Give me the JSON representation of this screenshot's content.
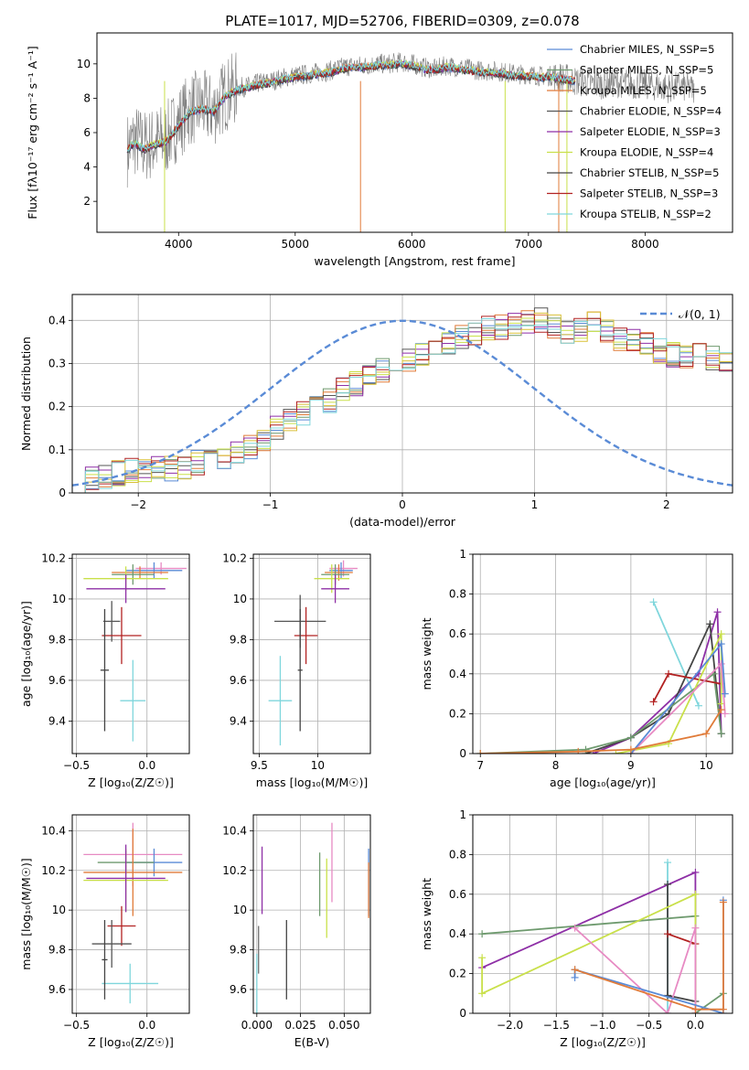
{
  "figure_title": "PLATE=1017, MJD=52706, FIBERID=0309, z=0.078",
  "series_colors": [
    "#5a8bd6",
    "#6e9a6e",
    "#e07b39",
    "#555555",
    "#8e2fa6",
    "#c9e04a",
    "#d9c037",
    "#b22222",
    "#7fd6dc"
  ],
  "chart_data": [
    {
      "id": "spectrum",
      "type": "line",
      "title": "PLATE=1017, MJD=52706, FIBERID=0309, z=0.078",
      "xlabel": "wavelength [Angstrom, rest frame]",
      "ylabel": "Flux [fλ10⁻¹⁷ erg cm⁻² s⁻¹ A⁻¹]",
      "xlim": [
        3300,
        8750
      ],
      "ylim": [
        0.2,
        11.8
      ],
      "xticks": [
        4000,
        5000,
        6000,
        7000,
        8000
      ],
      "yticks": [
        2,
        4,
        6,
        8,
        10
      ],
      "grid": false,
      "legend_position": "right",
      "legend": [
        "Chabrier MILES, N_SSP=5",
        "Salpeter MILES, N_SSP=5",
        "Kroupa MILES, N_SSP=5",
        "Chabrier ELODIE, N_SSP=4",
        "Salpeter ELODIE, N_SSP=3",
        "Kroupa ELODIE, N_SSP=4",
        "Chabrier STELIB, N_SSP=5",
        "Salpeter STELIB, N_SSP=3",
        "Kroupa STELIB, N_SSP=2"
      ],
      "legend_colors": [
        "#5a8bd6",
        "#6e9a6e",
        "#e07b39",
        "#555555",
        "#8e2fa6",
        "#c9e04a",
        "#444444",
        "#b22222",
        "#7fd6dc"
      ],
      "data_wavelength": [
        3560,
        3620,
        3700,
        3800,
        3900,
        4000,
        4100,
        4200,
        4300,
        4400,
        4500,
        4600,
        4700,
        4800,
        4900,
        5000,
        5100,
        5200,
        5300,
        5400,
        5500,
        5600,
        5700,
        5800,
        5900,
        6000,
        6100,
        6200,
        6300,
        6400,
        6500,
        6600,
        6700,
        6800,
        6900,
        7000,
        7100,
        7200,
        7300,
        7400,
        7500,
        7600,
        7700,
        7800,
        7900,
        8000,
        8100,
        8200,
        8300,
        8420
      ],
      "data_flux": [
        5.0,
        5.6,
        5.2,
        5.4,
        5.7,
        6.6,
        7.4,
        7.5,
        7.3,
        8.2,
        8.6,
        8.7,
        8.9,
        9.0,
        9.2,
        9.3,
        9.4,
        9.5,
        9.6,
        9.8,
        9.9,
        9.9,
        10.0,
        10.0,
        10.1,
        10.0,
        9.8,
        9.7,
        9.9,
        9.8,
        9.7,
        9.6,
        9.6,
        9.5,
        9.4,
        9.4,
        9.3,
        9.3,
        9.2,
        9.0,
        8.9,
        8.8,
        8.9,
        8.9,
        8.8,
        8.8,
        8.7,
        8.6,
        8.7,
        8.5
      ],
      "model_wavelength": [
        3560,
        3620,
        3700,
        3800,
        3900,
        4000,
        4100,
        4200,
        4300,
        4400,
        4500,
        4600,
        4700,
        4800,
        4900,
        5000,
        5100,
        5200,
        5300,
        5400,
        5500,
        5600,
        5700,
        5800,
        5900,
        6000,
        6100,
        6200,
        6300,
        6400,
        6500,
        6600,
        6700,
        6800,
        6900,
        7000,
        7100,
        7200,
        7300,
        7400
      ],
      "model_flux": [
        5.0,
        5.4,
        5.0,
        5.3,
        5.5,
        6.4,
        7.2,
        7.4,
        7.2,
        8.1,
        8.5,
        8.6,
        8.8,
        8.9,
        9.1,
        9.2,
        9.3,
        9.4,
        9.5,
        9.7,
        9.8,
        9.8,
        9.9,
        9.9,
        10.0,
        9.9,
        9.7,
        9.6,
        9.8,
        9.7,
        9.6,
        9.5,
        9.5,
        9.4,
        9.3,
        9.3,
        9.2,
        9.2,
        9.1,
        9.0
      ]
    },
    {
      "id": "residuals",
      "type": "histogram",
      "xlabel": "(data-model)/error",
      "ylabel": "Normed distribution",
      "xlim": [
        -2.5,
        2.5
      ],
      "ylim": [
        0,
        0.46
      ],
      "xticks": [
        -2,
        -1,
        0,
        1,
        2
      ],
      "xtick_labels": [
        "−2",
        "−1",
        "0",
        "1",
        "2"
      ],
      "yticks": [
        0.0,
        0.1,
        0.2,
        0.3,
        0.4
      ],
      "grid": true,
      "legend": [
        "𝒩(0, 1)"
      ],
      "legend_position": "top-right",
      "bin_width": 0.1,
      "bin_start": -2.5,
      "hist_base": [
        0.03,
        0.035,
        0.04,
        0.045,
        0.05,
        0.055,
        0.06,
        0.055,
        0.06,
        0.07,
        0.075,
        0.08,
        0.09,
        0.105,
        0.125,
        0.15,
        0.165,
        0.185,
        0.2,
        0.215,
        0.24,
        0.255,
        0.27,
        0.285,
        0.3,
        0.31,
        0.325,
        0.335,
        0.345,
        0.36,
        0.37,
        0.38,
        0.385,
        0.39,
        0.395,
        0.4,
        0.385,
        0.37,
        0.38,
        0.4,
        0.375,
        0.36,
        0.35,
        0.345,
        0.33,
        0.32,
        0.32,
        0.32,
        0.31,
        0.3,
        0.29,
        0.27,
        0.25,
        0.245,
        0.23,
        0.215,
        0.19,
        0.17,
        0.15,
        0.135,
        0.12,
        0.11,
        0.1,
        0.09,
        0.075,
        0.065,
        0.06,
        0.055,
        0.05,
        0.045,
        0.04,
        0.035,
        0.035,
        0.03,
        0.03,
        0.03
      ]
    },
    {
      "id": "age-vs-Z",
      "type": "scatter",
      "xlabel": "Z [log₁₀(Z/Z☉)]",
      "ylabel": "age  [log₁₀(age/yr)]",
      "xlim": [
        -0.53,
        0.3
      ],
      "ylim": [
        9.24,
        10.22
      ],
      "xticks": [
        -0.5,
        0.0
      ],
      "xtick_labels": [
        "−0.5",
        "0.0"
      ],
      "yticks": [
        9.4,
        9.6,
        9.8,
        10.0,
        10.2
      ],
      "grid": true,
      "points": [
        {
          "x": 0.1,
          "y": 10.15,
          "xerr": 0.18,
          "yerr": 0.03,
          "color": "#e78ac3"
        },
        {
          "x": 0.05,
          "y": 10.14,
          "xerr": 0.2,
          "yerr": 0.04,
          "color": "#5a8bd6"
        },
        {
          "x": -0.05,
          "y": 10.13,
          "xerr": 0.2,
          "yerr": 0.03,
          "color": "#e07b39"
        },
        {
          "x": -0.1,
          "y": 10.12,
          "xerr": 0.15,
          "yerr": 0.05,
          "color": "#6e9a6e"
        },
        {
          "x": -0.15,
          "y": 10.1,
          "xerr": 0.3,
          "yerr": 0.06,
          "color": "#c9e04a"
        },
        {
          "x": -0.15,
          "y": 10.05,
          "xerr": 0.28,
          "yerr": 0.07,
          "color": "#8e2fa6"
        },
        {
          "x": -0.25,
          "y": 9.89,
          "xerr": 0.06,
          "yerr": 0.1,
          "color": "#555555"
        },
        {
          "x": -0.18,
          "y": 9.82,
          "xerr": 0.14,
          "yerr": 0.14,
          "color": "#b22222"
        },
        {
          "x": -0.1,
          "y": 9.5,
          "xerr": 0.09,
          "yerr": 0.2,
          "color": "#7fd6dc"
        },
        {
          "x": -0.3,
          "y": 9.65,
          "xerr": 0.03,
          "yerr": 0.3,
          "color": "#444444"
        }
      ]
    },
    {
      "id": "age-vs-mass",
      "type": "scatter",
      "xlabel": "mass [log₁₀(M/M☉)]",
      "ylabel": "",
      "xlim": [
        9.45,
        10.45
      ],
      "ylim": [
        9.24,
        10.22
      ],
      "xticks": [
        9.5,
        10.0
      ],
      "yticks": [
        9.4,
        9.6,
        9.8,
        10.0,
        10.2
      ],
      "grid": true,
      "points": [
        {
          "x": 10.22,
          "y": 10.15,
          "xerr": 0.12,
          "yerr": 0.04,
          "color": "#e78ac3"
        },
        {
          "x": 10.2,
          "y": 10.14,
          "xerr": 0.1,
          "yerr": 0.04,
          "color": "#5a8bd6"
        },
        {
          "x": 10.18,
          "y": 10.13,
          "xerr": 0.12,
          "yerr": 0.04,
          "color": "#e07b39"
        },
        {
          "x": 10.15,
          "y": 10.12,
          "xerr": 0.12,
          "yerr": 0.05,
          "color": "#6e9a6e"
        },
        {
          "x": 10.12,
          "y": 10.1,
          "xerr": 0.15,
          "yerr": 0.07,
          "color": "#c9e04a"
        },
        {
          "x": 10.15,
          "y": 10.05,
          "xerr": 0.12,
          "yerr": 0.07,
          "color": "#8e2fa6"
        },
        {
          "x": 9.85,
          "y": 9.89,
          "xerr": 0.22,
          "yerr": 0.13,
          "color": "#555555"
        },
        {
          "x": 9.9,
          "y": 9.82,
          "xerr": 0.1,
          "yerr": 0.14,
          "color": "#b22222"
        },
        {
          "x": 9.68,
          "y": 9.5,
          "xerr": 0.1,
          "yerr": 0.22,
          "color": "#7fd6dc"
        },
        {
          "x": 9.85,
          "y": 9.65,
          "xerr": 0.02,
          "yerr": 0.3,
          "color": "#444444"
        }
      ]
    },
    {
      "id": "massweight-vs-age",
      "type": "line",
      "xlabel": "age  [log₁₀(age/yr)]",
      "ylabel": "mass weight",
      "xlim": [
        6.9,
        10.35
      ],
      "ylim": [
        0.0,
        1.0
      ],
      "xticks": [
        7,
        8,
        9,
        10
      ],
      "yticks": [
        0.0,
        0.2,
        0.4,
        0.6,
        0.8,
        1.0
      ],
      "grid": true,
      "series": [
        {
          "color": "#7fd6dc",
          "x": [
            9.3,
            9.9
          ],
          "y": [
            0.76,
            0.24
          ]
        },
        {
          "color": "#8e2fa6",
          "x": [
            8.5,
            9.0,
            9.9,
            10.15,
            10.2
          ],
          "y": [
            0.0,
            0.08,
            0.4,
            0.71,
            0.1
          ]
        },
        {
          "color": "#444444",
          "x": [
            8.4,
            9.0,
            9.5,
            10.05,
            10.2
          ],
          "y": [
            0.0,
            0.08,
            0.2,
            0.65,
            0.1
          ]
        },
        {
          "color": "#6e9a6e",
          "x": [
            7.0,
            8.4,
            9.0,
            10.1,
            10.2
          ],
          "y": [
            0.0,
            0.02,
            0.08,
            0.4,
            0.1
          ]
        },
        {
          "color": "#b22222",
          "x": [
            9.3,
            9.5,
            10.2
          ],
          "y": [
            0.26,
            0.4,
            0.35
          ]
        },
        {
          "color": "#c9e04a",
          "x": [
            8.8,
            9.5,
            10.2,
            10.2
          ],
          "y": [
            0.0,
            0.05,
            0.6,
            0.25
          ]
        },
        {
          "color": "#e78ac3",
          "x": [
            9.0,
            10.2,
            10.25
          ],
          "y": [
            0.0,
            0.45,
            0.2
          ]
        },
        {
          "color": "#5a8bd6",
          "x": [
            9.0,
            10.2,
            10.25
          ],
          "y": [
            0.0,
            0.55,
            0.3
          ]
        },
        {
          "color": "#e07b39",
          "x": [
            7.0,
            8.3,
            9.0,
            10.0,
            10.2
          ],
          "y": [
            0.0,
            0.01,
            0.02,
            0.1,
            0.22
          ]
        }
      ]
    },
    {
      "id": "mass-vs-Z",
      "type": "scatter",
      "xlabel": "Z [log₁₀(Z/Z☉)]",
      "ylabel": "mass [log₁₀(M/M☉)]",
      "xlim": [
        -0.53,
        0.3
      ],
      "ylim": [
        9.48,
        10.48
      ],
      "xticks": [
        -0.5,
        0.0
      ],
      "xtick_labels": [
        "−0.5",
        "0.0"
      ],
      "yticks": [
        9.6,
        9.8,
        10.0,
        10.2,
        10.4
      ],
      "grid": true,
      "points": [
        {
          "x": -0.1,
          "y": 10.28,
          "xerr": 0.35,
          "yerr": 0.16,
          "color": "#e78ac3"
        },
        {
          "x": 0.05,
          "y": 10.24,
          "xerr": 0.2,
          "yerr": 0.07,
          "color": "#5a8bd6"
        },
        {
          "x": -0.15,
          "y": 10.24,
          "xerr": 0.2,
          "yerr": 0.06,
          "color": "#6e9a6e"
        },
        {
          "x": -0.1,
          "y": 10.19,
          "xerr": 0.35,
          "yerr": 0.22,
          "color": "#e07b39"
        },
        {
          "x": -0.15,
          "y": 10.15,
          "xerr": 0.3,
          "yerr": 0.16,
          "color": "#c9e04a"
        },
        {
          "x": -0.15,
          "y": 10.16,
          "xerr": 0.28,
          "yerr": 0.17,
          "color": "#8e2fa6"
        },
        {
          "x": -0.18,
          "y": 9.92,
          "xerr": 0.1,
          "yerr": 0.1,
          "color": "#b22222"
        },
        {
          "x": -0.25,
          "y": 9.83,
          "xerr": 0.14,
          "yerr": 0.12,
          "color": "#555555"
        },
        {
          "x": -0.12,
          "y": 9.63,
          "xerr": 0.2,
          "yerr": 0.1,
          "color": "#7fd6dc"
        },
        {
          "x": -0.3,
          "y": 9.75,
          "xerr": 0.02,
          "yerr": 0.2,
          "color": "#444444"
        }
      ]
    },
    {
      "id": "mass-vs-ebv",
      "type": "scatter",
      "xlabel": "E(B-V)",
      "ylabel": "",
      "xlim": [
        -0.002,
        0.065
      ],
      "ylim": [
        9.48,
        10.48
      ],
      "xticks": [
        0.0,
        0.025,
        0.05
      ],
      "xtick_labels": [
        "0.000",
        "0.025",
        "0.050"
      ],
      "yticks": [
        9.6,
        9.8,
        10.0,
        10.2,
        10.4
      ],
      "grid": true,
      "points": [
        {
          "x": 0.043,
          "y": 10.24,
          "yerr": 0.2,
          "color": "#e78ac3"
        },
        {
          "x": 0.064,
          "y": 10.14,
          "yerr": 0.17,
          "color": "#5a8bd6"
        },
        {
          "x": 0.064,
          "y": 10.1,
          "yerr": 0.14,
          "color": "#e07b39"
        },
        {
          "x": 0.036,
          "y": 10.13,
          "yerr": 0.16,
          "color": "#6e9a6e"
        },
        {
          "x": 0.04,
          "y": 10.06,
          "yerr": 0.2,
          "color": "#c9e04a"
        },
        {
          "x": 0.003,
          "y": 10.15,
          "yerr": 0.17,
          "color": "#8e2fa6"
        },
        {
          "x": 0.017,
          "y": 9.75,
          "yerr": 0.2,
          "color": "#444444"
        },
        {
          "x": 0.001,
          "y": 9.8,
          "yerr": 0.12,
          "color": "#6e6e6e"
        },
        {
          "x": 0.0,
          "y": 9.63,
          "yerr": 0.15,
          "color": "#7fd6dc"
        }
      ]
    },
    {
      "id": "massweight-vs-Z",
      "type": "line",
      "xlabel": "Z [log₁₀(Z/Z☉)]",
      "ylabel": "mass weight",
      "xlim": [
        -2.4,
        0.4
      ],
      "ylim": [
        0.0,
        1.0
      ],
      "xticks": [
        -2.0,
        -1.5,
        -1.0,
        -0.5,
        0.0
      ],
      "xtick_labels": [
        "−2.0",
        "−1.5",
        "−1.0",
        "−0.5",
        "0.0"
      ],
      "yticks": [
        0.0,
        0.2,
        0.4,
        0.6,
        0.8,
        1.0
      ],
      "grid": true,
      "series": [
        {
          "color": "#7fd6dc",
          "x": [
            -0.3,
            -0.3
          ],
          "y": [
            0.0,
            0.76
          ]
        },
        {
          "color": "#8e2fa6",
          "x": [
            -2.3,
            0.0,
            0.0
          ],
          "y": [
            0.23,
            0.71,
            0.0
          ]
        },
        {
          "color": "#444444",
          "x": [
            -0.3,
            -0.3,
            0.0
          ],
          "y": [
            0.65,
            0.09,
            0.06
          ]
        },
        {
          "color": "#6e9a6e",
          "x": [
            -2.3,
            0.0,
            0.0,
            0.3
          ],
          "y": [
            0.4,
            0.49,
            0.0,
            0.1
          ]
        },
        {
          "color": "#b22222",
          "x": [
            -0.3,
            0.0
          ],
          "y": [
            0.4,
            0.35
          ]
        },
        {
          "color": "#c9e04a",
          "x": [
            -2.3,
            -2.3,
            0.0,
            0.0
          ],
          "y": [
            0.28,
            0.1,
            0.6,
            0.0
          ]
        },
        {
          "color": "#e78ac3",
          "x": [
            -1.3,
            -0.3,
            0.0,
            0.0
          ],
          "y": [
            0.43,
            0.0,
            0.43,
            0.0
          ]
        },
        {
          "color": "#5a8bd6",
          "x": [
            -1.3,
            -1.3,
            0.3,
            0.3
          ],
          "y": [
            0.18,
            0.22,
            0.0,
            0.57
          ]
        },
        {
          "color": "#e07b39",
          "x": [
            -1.3,
            0.0,
            0.3,
            0.3
          ],
          "y": [
            0.22,
            0.02,
            0.02,
            0.56
          ]
        }
      ]
    }
  ]
}
